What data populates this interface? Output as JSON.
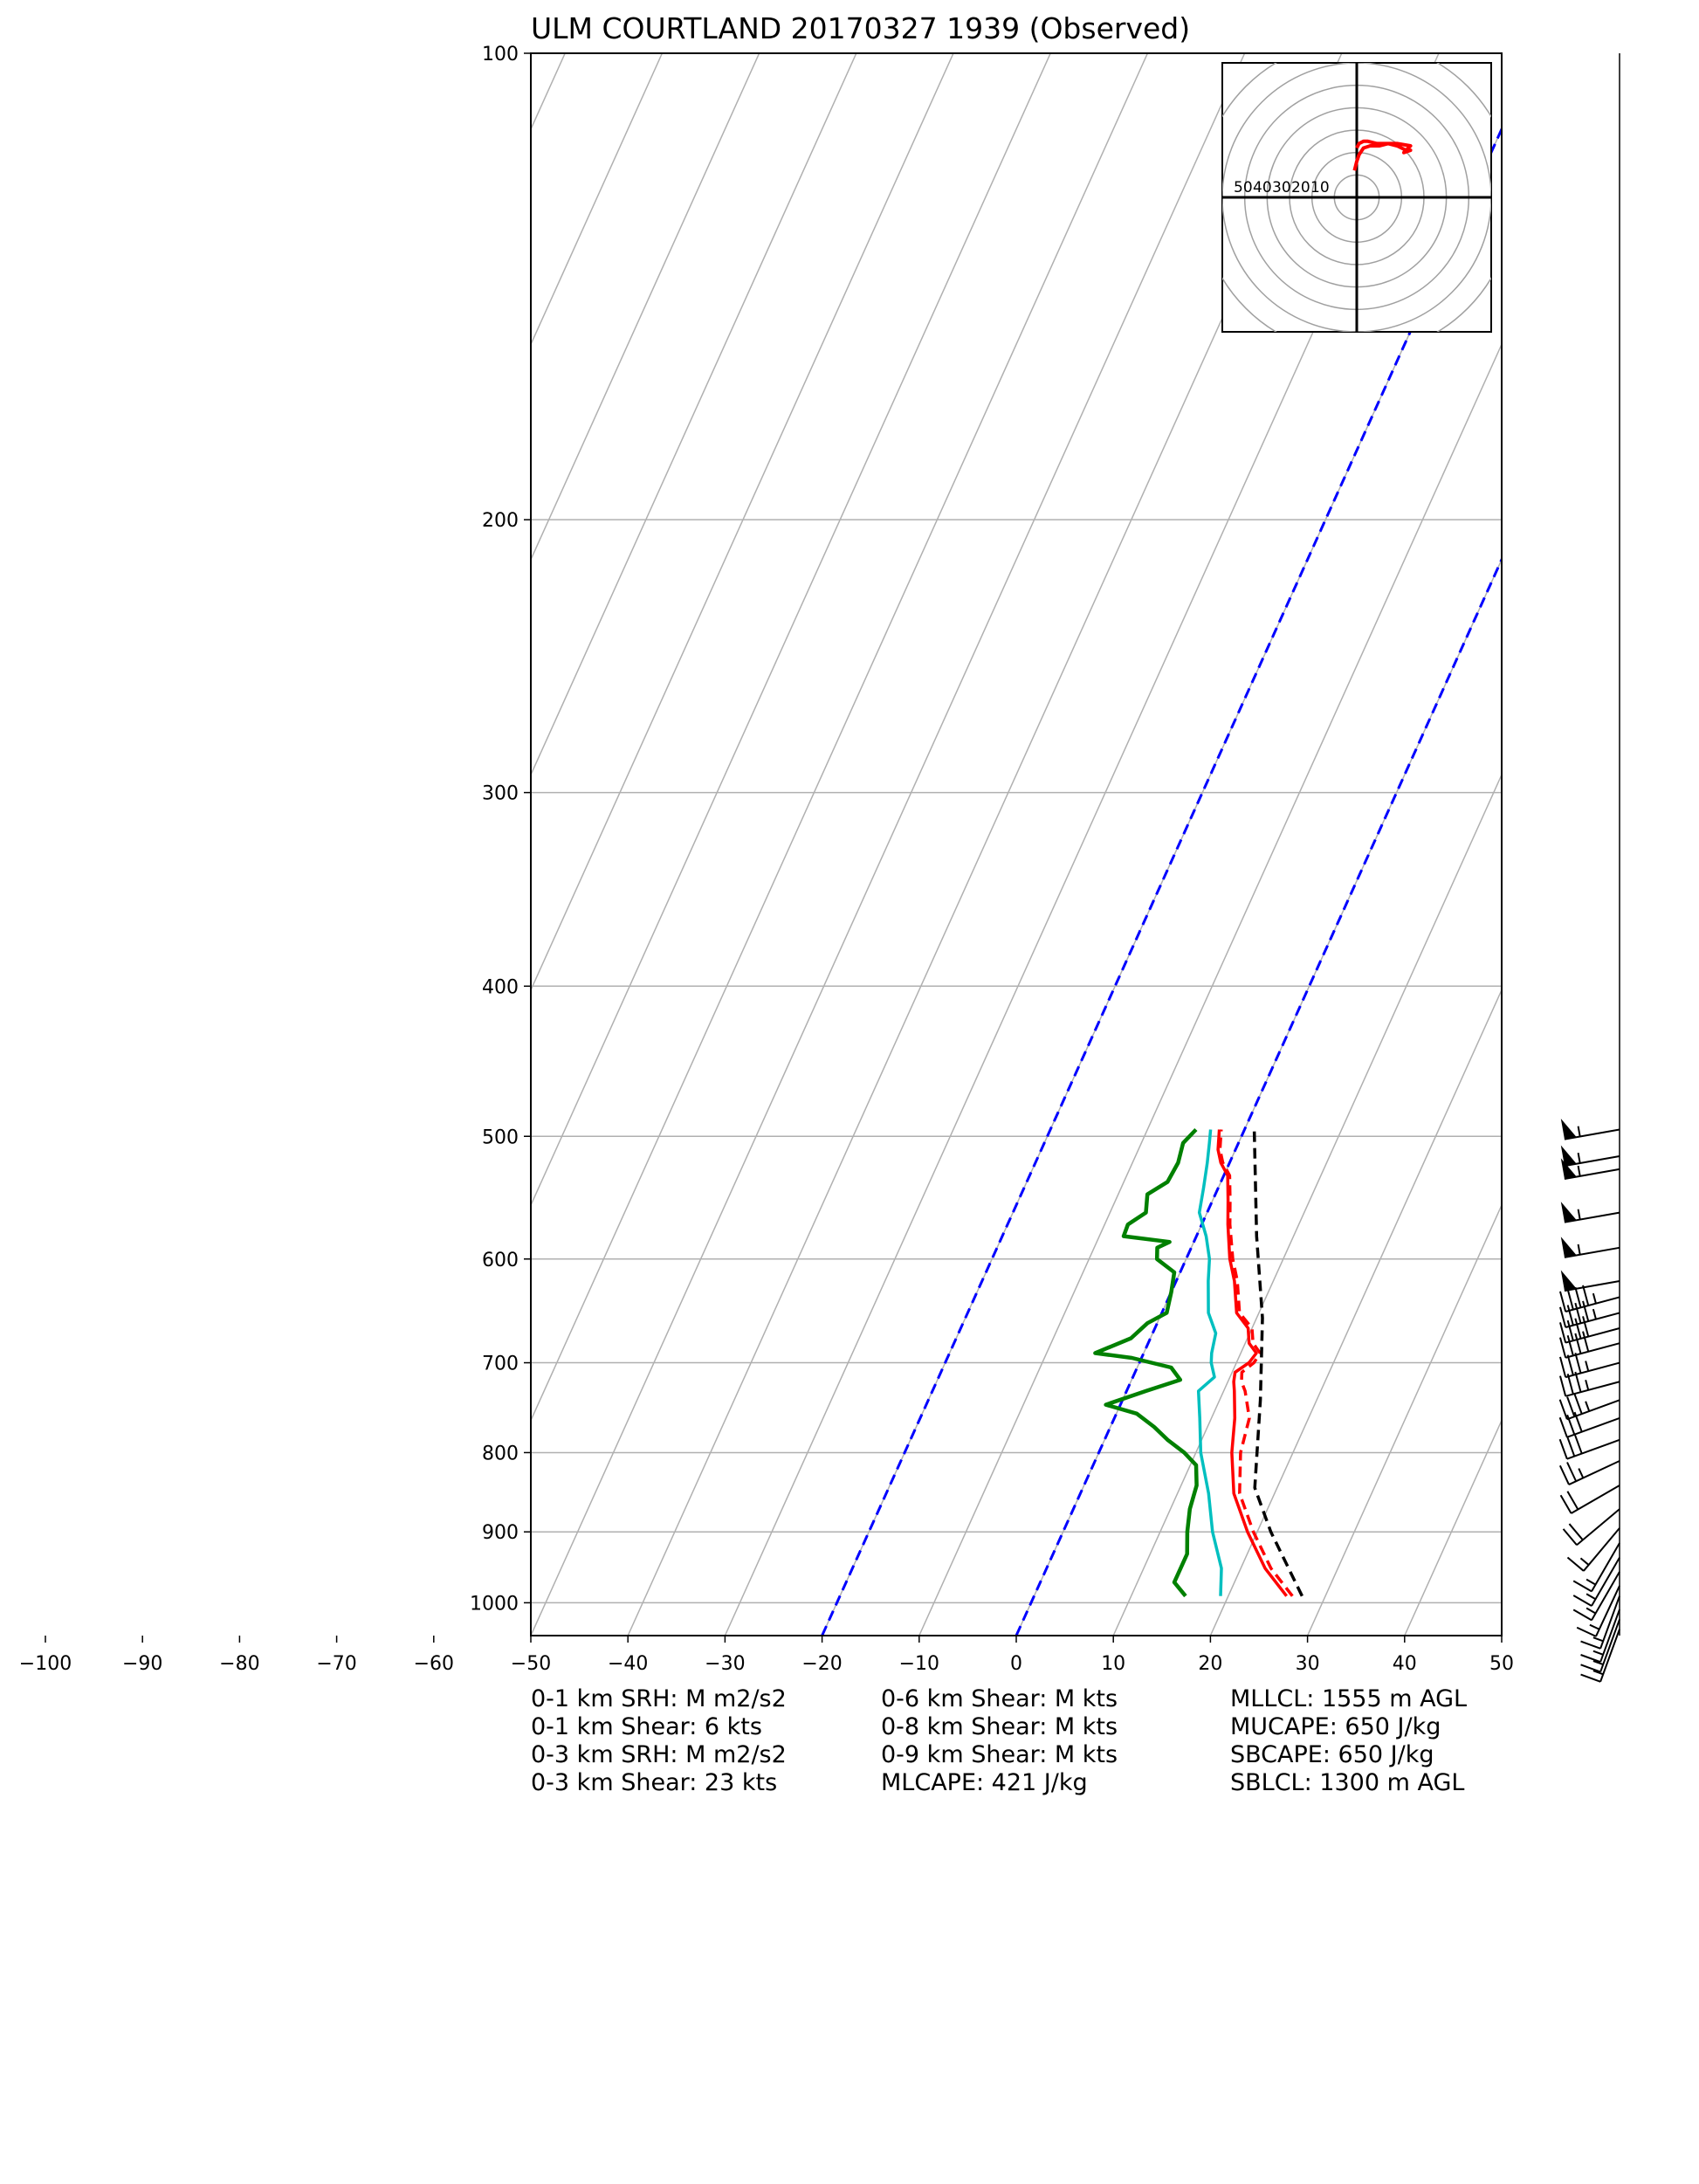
{
  "chart_data": {
    "type": "line",
    "title": "ULM COURTLAND 20170327 1939   (Observed)",
    "x_ticks": [
      -100,
      -90,
      -80,
      -70,
      -60,
      -50,
      -40,
      -30,
      -20,
      -10,
      0,
      10,
      20,
      30,
      40,
      50
    ],
    "x_tick_labels": [
      "−100",
      "−90",
      "−80",
      "−70",
      "−60",
      "−50",
      "−40",
      "−30",
      "−20",
      "−10",
      "0",
      "10",
      "20",
      "30",
      "40",
      "50"
    ],
    "y_ticks": [
      100,
      200,
      300,
      400,
      500,
      600,
      700,
      800,
      900,
      1000
    ],
    "y_tick_labels": [
      "100",
      "200",
      "300",
      "400",
      "500",
      "600",
      "700",
      "800",
      "900",
      "1000"
    ],
    "xlim": [
      -50,
      50
    ],
    "ylim": [
      1050,
      100
    ],
    "y_scale": "log",
    "grid": true,
    "skew_deg_per_log_unit": 72,
    "colors": {
      "temperature": "#ff0000",
      "dewpoint": "#008000",
      "wetbulb": "#00bfbf",
      "virtual_temperature": "#ff0000",
      "parcel": "#000000",
      "isotherms_highlight": "#0000ff",
      "grid": "#b0b0b0"
    },
    "series": [
      {
        "key": "temperature",
        "style": "solid",
        "points": [
          [
            26.0,
            990
          ],
          [
            22.5,
            950
          ],
          [
            19.0,
            900
          ],
          [
            15.8,
            850
          ],
          [
            13.7,
            800
          ],
          [
            12.4,
            760
          ],
          [
            11.1,
            730
          ],
          [
            10.6,
            720
          ],
          [
            10.3,
            710
          ],
          [
            11.3,
            700
          ],
          [
            11.6,
            690
          ],
          [
            10.4,
            680
          ],
          [
            9.6,
            665
          ],
          [
            7.7,
            650
          ],
          [
            6.0,
            620
          ],
          [
            4.5,
            600
          ],
          [
            2.7,
            570
          ],
          [
            1.6,
            550
          ],
          [
            0.4,
            530
          ],
          [
            -0.9,
            520
          ],
          [
            -1.8,
            510
          ],
          [
            -2.6,
            495
          ]
        ]
      },
      {
        "key": "virtual_temperature",
        "style": "dashed",
        "points": [
          [
            26.6,
            990
          ],
          [
            23.1,
            950
          ],
          [
            19.6,
            900
          ],
          [
            16.4,
            850
          ],
          [
            14.6,
            800
          ],
          [
            13.9,
            760
          ],
          [
            12.2,
            730
          ],
          [
            11.4,
            720
          ],
          [
            11.0,
            710
          ],
          [
            11.8,
            700
          ],
          [
            12.0,
            690
          ],
          [
            10.8,
            680
          ],
          [
            10.0,
            665
          ],
          [
            8.0,
            650
          ],
          [
            6.3,
            620
          ],
          [
            4.8,
            600
          ],
          [
            2.9,
            570
          ],
          [
            1.8,
            550
          ],
          [
            0.6,
            530
          ],
          [
            -0.7,
            520
          ],
          [
            -1.6,
            510
          ],
          [
            -2.4,
            495
          ]
        ]
      },
      {
        "key": "wetbulb",
        "style": "solid",
        "points": [
          [
            19.2,
            990
          ],
          [
            18.0,
            950
          ],
          [
            15.4,
            900
          ],
          [
            13.2,
            850
          ],
          [
            10.5,
            800
          ],
          [
            8.8,
            760
          ],
          [
            7.4,
            730
          ],
          [
            8.4,
            715
          ],
          [
            7.4,
            700
          ],
          [
            7.0,
            690
          ],
          [
            6.5,
            670
          ],
          [
            4.8,
            650
          ],
          [
            3.3,
            620
          ],
          [
            2.4,
            600
          ],
          [
            1.0,
            580
          ],
          [
            -0.8,
            560
          ],
          [
            -1.5,
            540
          ],
          [
            -2.3,
            520
          ],
          [
            -3.0,
            505
          ],
          [
            -3.5,
            495
          ]
        ]
      },
      {
        "key": "dewpoint",
        "style": "solid",
        "points": [
          [
            15.6,
            990
          ],
          [
            13.8,
            970
          ],
          [
            13.8,
            930
          ],
          [
            12.8,
            900
          ],
          [
            12.0,
            870
          ],
          [
            11.6,
            840
          ],
          [
            10.6,
            815
          ],
          [
            8.8,
            800
          ],
          [
            6.5,
            785
          ],
          [
            4.5,
            770
          ],
          [
            2.1,
            755
          ],
          [
            -1.5,
            745
          ],
          [
            2.0,
            730
          ],
          [
            5.0,
            718
          ],
          [
            3.5,
            705
          ],
          [
            -1.0,
            695
          ],
          [
            -5.0,
            690
          ],
          [
            -2.0,
            675
          ],
          [
            -1.0,
            660
          ],
          [
            0.5,
            650
          ],
          [
            0.0,
            630
          ],
          [
            -0.6,
            612
          ],
          [
            -3.0,
            600
          ],
          [
            -3.5,
            590
          ],
          [
            -2.5,
            585
          ],
          [
            -7.5,
            580
          ],
          [
            -7.6,
            570
          ],
          [
            -6.3,
            560
          ],
          [
            -7.0,
            545
          ],
          [
            -5.5,
            535
          ],
          [
            -5.3,
            520
          ],
          [
            -5.7,
            505
          ],
          [
            -5.0,
            495
          ]
        ]
      },
      {
        "key": "parcel",
        "style": "dashed",
        "points": [
          [
            27.6,
            990
          ],
          [
            21.4,
            900
          ],
          [
            17.7,
            843
          ],
          [
            14.2,
            740
          ],
          [
            10.6,
            655
          ],
          [
            6.2,
            580
          ],
          [
            1.0,
            495
          ]
        ]
      }
    ],
    "wind_barbs": [
      {
        "p": 495,
        "dir": 260,
        "spd": 55
      },
      {
        "p": 515,
        "dir": 260,
        "spd": 55
      },
      {
        "p": 525,
        "dir": 260,
        "spd": 55
      },
      {
        "p": 560,
        "dir": 260,
        "spd": 55
      },
      {
        "p": 590,
        "dir": 260,
        "spd": 55
      },
      {
        "p": 620,
        "dir": 260,
        "spd": 50
      },
      {
        "p": 635,
        "dir": 255,
        "spd": 45
      },
      {
        "p": 650,
        "dir": 255,
        "spd": 45
      },
      {
        "p": 665,
        "dir": 255,
        "spd": 40
      },
      {
        "p": 680,
        "dir": 255,
        "spd": 40
      },
      {
        "p": 700,
        "dir": 255,
        "spd": 35
      },
      {
        "p": 720,
        "dir": 255,
        "spd": 35
      },
      {
        "p": 740,
        "dir": 250,
        "spd": 35
      },
      {
        "p": 760,
        "dir": 250,
        "spd": 30
      },
      {
        "p": 785,
        "dir": 250,
        "spd": 30
      },
      {
        "p": 810,
        "dir": 245,
        "spd": 25
      },
      {
        "p": 840,
        "dir": 240,
        "spd": 20
      },
      {
        "p": 870,
        "dir": 230,
        "spd": 20
      },
      {
        "p": 895,
        "dir": 220,
        "spd": 15
      },
      {
        "p": 915,
        "dir": 210,
        "spd": 15
      },
      {
        "p": 935,
        "dir": 210,
        "spd": 15
      },
      {
        "p": 955,
        "dir": 210,
        "spd": 15
      },
      {
        "p": 975,
        "dir": 205,
        "spd": 15
      },
      {
        "p": 990,
        "dir": 200,
        "spd": 15
      },
      {
        "p": 1010,
        "dir": 200,
        "spd": 15
      },
      {
        "p": 1025,
        "dir": 200,
        "spd": 15
      },
      {
        "p": 1040,
        "dir": 200,
        "spd": 15
      }
    ],
    "hodograph": {
      "rings": [
        10,
        20,
        30,
        40,
        50
      ],
      "ring_labels": [
        "50",
        "40",
        "30",
        "20",
        "10"
      ],
      "range": 60,
      "trace_color": "#ff0000",
      "trace": [
        [
          -1,
          12
        ],
        [
          0,
          16
        ],
        [
          1,
          19
        ],
        [
          3,
          22
        ],
        [
          6,
          23
        ],
        [
          10,
          23
        ],
        [
          14,
          24
        ],
        [
          18,
          23
        ],
        [
          20,
          22
        ],
        [
          22,
          21
        ],
        [
          24,
          21
        ],
        [
          21,
          20
        ],
        [
          24,
          23
        ],
        [
          18,
          24
        ],
        [
          13,
          24
        ],
        [
          9,
          24
        ],
        [
          5,
          25
        ],
        [
          3,
          25
        ],
        [
          1,
          24
        ],
        [
          0,
          22
        ]
      ]
    }
  },
  "stats": {
    "col1": [
      "0-1 km SRH: M m2/s2",
      "0-1 km Shear: 6 kts",
      "0-3 km SRH: M m2/s2",
      "0-3 km Shear: 23 kts"
    ],
    "col2": [
      "0-6 km Shear: M kts",
      "0-8 km Shear: M kts",
      "0-9 km Shear: M kts",
      "MLCAPE: 421 J/kg"
    ],
    "col3": [
      "MLLCL: 1555 m AGL",
      "MUCAPE: 650 J/kg",
      "SBCAPE: 650 J/kg",
      "SBLCL: 1300 m AGL"
    ]
  }
}
